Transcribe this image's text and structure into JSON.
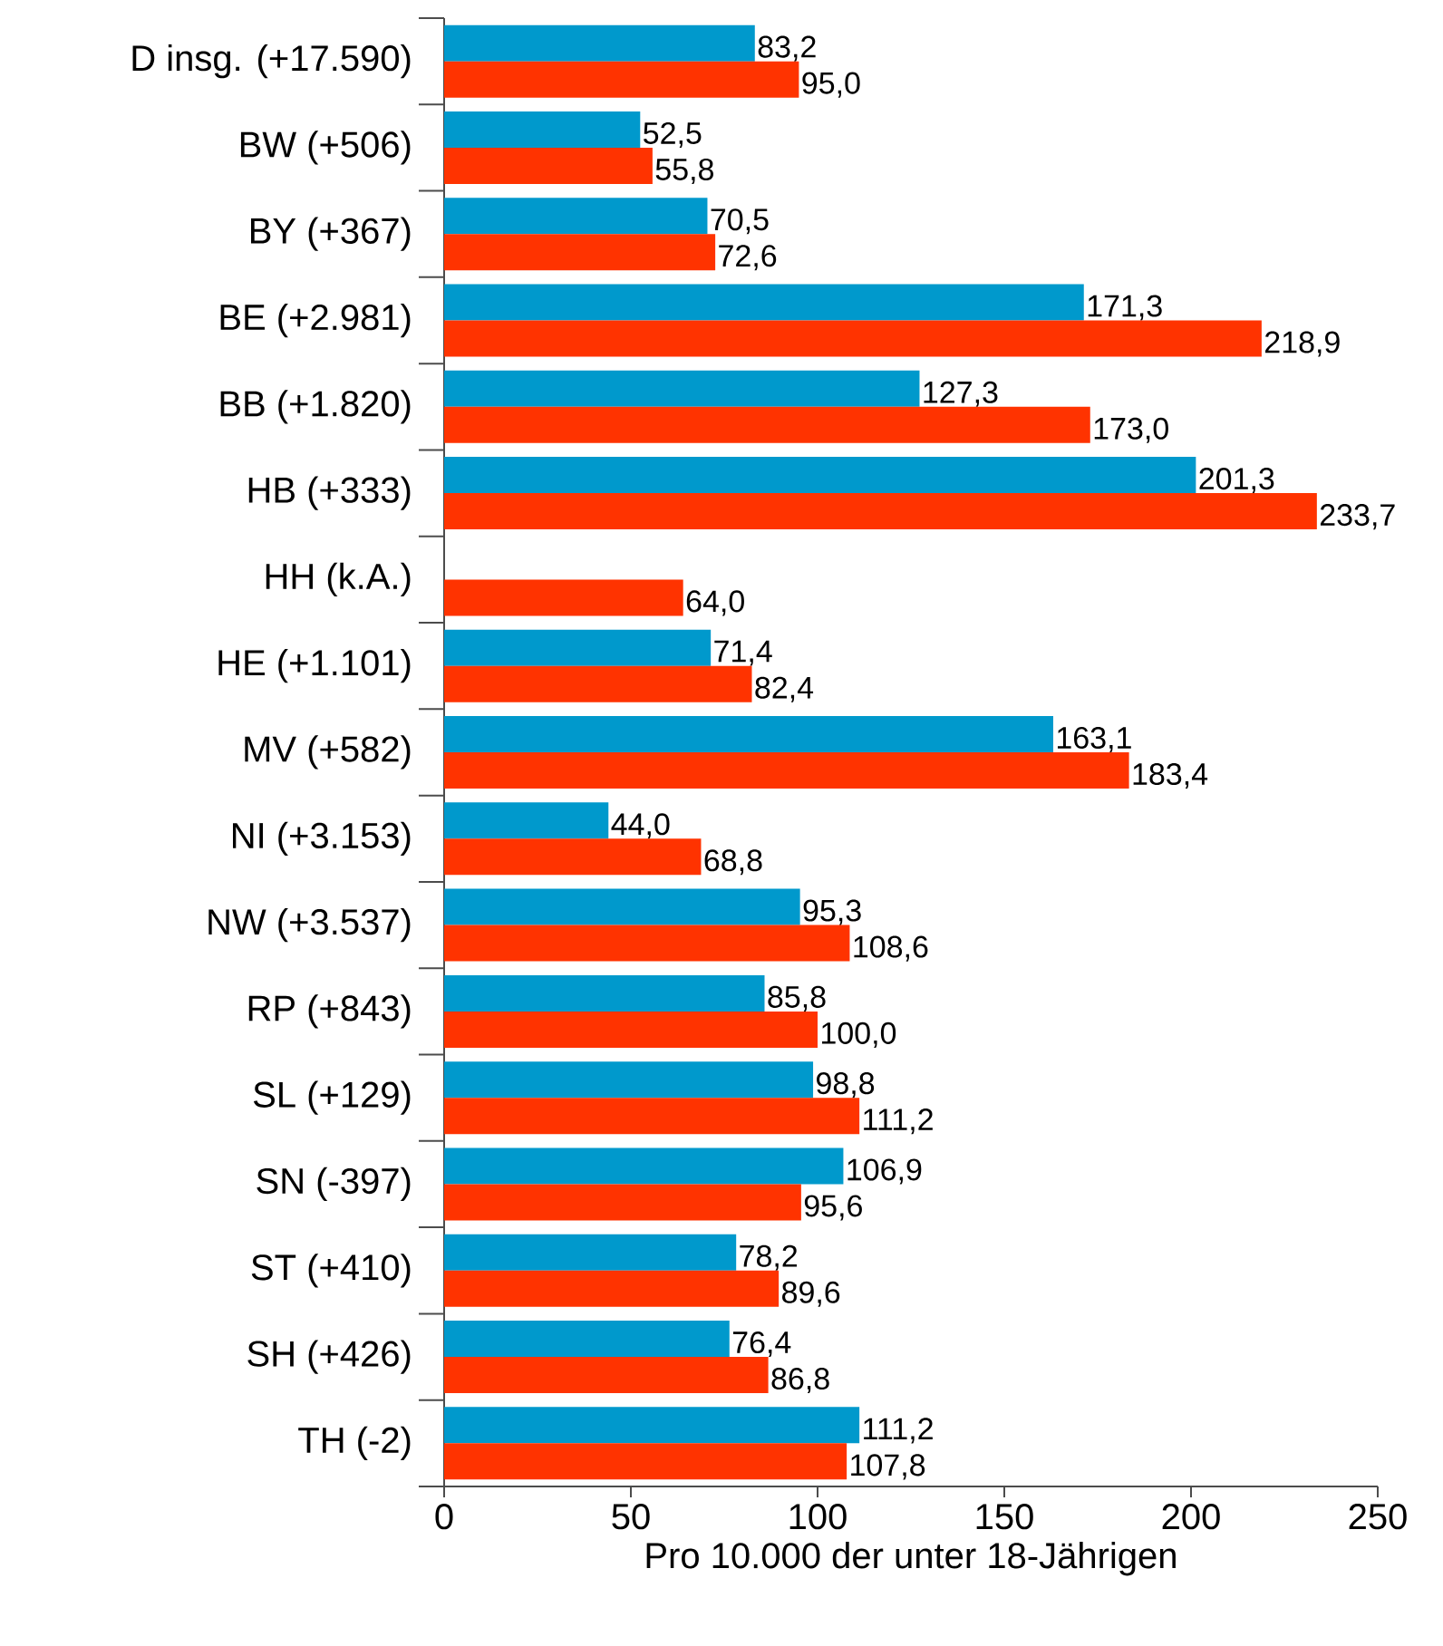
{
  "chart_data": {
    "type": "bar",
    "orientation": "horizontal",
    "categories": [
      "D insg. (+17.590)",
      "BW (+506)",
      "BY (+367)",
      "BE (+2.981)",
      "BB (+1.820)",
      "HB (+333)",
      "HH (k.A.)",
      "HE (+1.101)",
      "MV (+582)",
      "NI (+3.153)",
      "NW (+3.537)",
      "RP (+843)",
      "SL (+129)",
      "SN (-397)",
      "ST (+410)",
      "SH (+426)",
      "TH (-2)"
    ],
    "series": [
      {
        "color": "#0099cc",
        "values": [
          83.2,
          52.5,
          70.5,
          171.3,
          127.3,
          201.3,
          null,
          71.4,
          163.1,
          44.0,
          95.3,
          85.8,
          98.8,
          106.9,
          78.2,
          76.4,
          111.2
        ],
        "value_labels": [
          "83,2",
          "52,5",
          "70,5",
          "171,3",
          "127,3",
          "201,3",
          null,
          "71,4",
          "163,1",
          "44,0",
          "95,3",
          "85,8",
          "98,8",
          "106,9",
          "78,2",
          "76,4",
          "111,2"
        ]
      },
      {
        "color": "#ff3300",
        "values": [
          95.0,
          55.8,
          72.6,
          218.9,
          173.0,
          233.7,
          64.0,
          82.4,
          183.4,
          68.8,
          108.6,
          100.0,
          111.2,
          95.6,
          89.6,
          86.8,
          107.8
        ],
        "value_labels": [
          "95,0",
          "55,8",
          "72,6",
          "218,9",
          "173,0",
          "233,7",
          "64,0",
          "82,4",
          "183,4",
          "68,8",
          "108,6",
          "100,0",
          "111,2",
          "95,6",
          "89,6",
          "86,8",
          "107,8"
        ]
      }
    ],
    "xlabel": "Pro 10.000 der unter 18-Jährigen",
    "xlim": [
      0,
      250
    ],
    "xticks": [
      0,
      50,
      100,
      150,
      200,
      250
    ]
  }
}
